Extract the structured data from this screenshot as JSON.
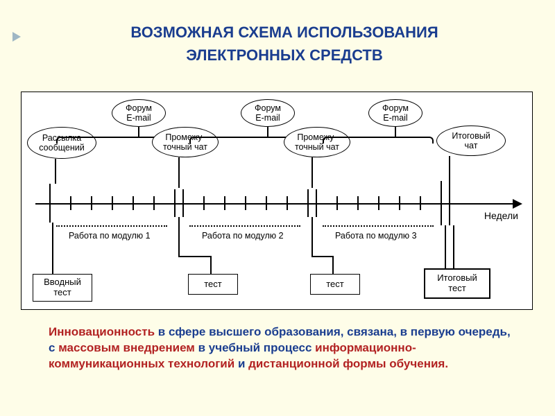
{
  "title": {
    "line1": "ВОЗМОЖНАЯ СХЕМА ИСПОЛЬЗОВАНИЯ",
    "line2": "ЭЛЕКТРОННЫХ СРЕДСТВ"
  },
  "caption": {
    "p1": "Инновационность",
    "p2": " в сфере высшего образования, связана, в первую очередь, с ",
    "p3": "массовым внедрением",
    "p4": " в учебный процесс ",
    "p5": "информационно-коммуникационных технологий",
    "p6": " и ",
    "p7": "дистанционной формы обучения."
  },
  "diagram": {
    "axis_label": "Недели",
    "bubbles": {
      "mailing": "Рассылка\nсообщений",
      "forum1": "Форум\nE-mail",
      "inter_chat1": "Промежу-\nточный чат",
      "forum2": "Форум\nE-mail",
      "inter_chat2": "Промежу-\nточный чат",
      "forum3": "Форум\nE-mail",
      "final_chat": "Итоговый\nчат"
    },
    "modules": {
      "m1": "Работа по модулю 1",
      "m2": "Работа по модулю 2",
      "m3": "Работа по модулю 3"
    },
    "tests": {
      "intro": "Вводный\nтест",
      "t1": "тест",
      "t2": "тест",
      "final": "Итоговый\nтест"
    },
    "colors": {
      "bg": "#fefde8",
      "panel": "#ffffff",
      "line": "#000000",
      "title": "#1a3d8f",
      "red": "#b22222"
    },
    "timeline": {
      "ticks_minor_height": 20,
      "ticks_module_height": 38,
      "ticks_end_height": 56,
      "minor_per_module": 5,
      "modules": 3
    }
  }
}
